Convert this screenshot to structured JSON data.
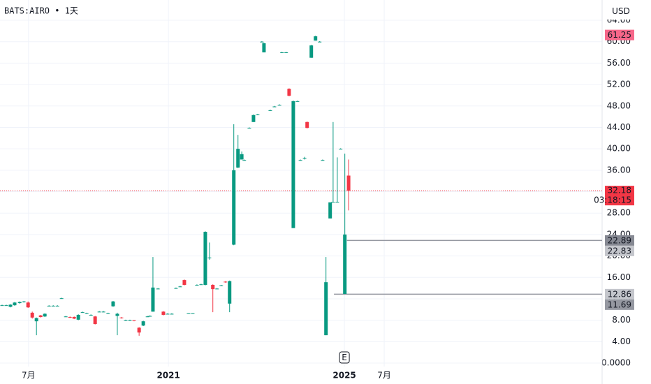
{
  "chart_data": {
    "type": "candlestick",
    "title": "BATS:AIRO • 1天",
    "currency": "USD",
    "up_color": "#089981",
    "down_color": "#f23645",
    "grid": true,
    "xlim": [
      0,
      143.7
    ],
    "ylim": [
      -0.65,
      67.78
    ],
    "yticks": [
      {
        "value": 0,
        "label": "0.0000"
      },
      {
        "value": 4,
        "label": "4.00"
      },
      {
        "value": 8,
        "label": "8.00"
      },
      {
        "value": 12,
        "label": "12.00"
      },
      {
        "value": 16,
        "label": "16.00"
      },
      {
        "value": 20,
        "label": "20.00"
      },
      {
        "value": 24,
        "label": "24.00"
      },
      {
        "value": 28,
        "label": "28.00"
      },
      {
        "value": 32,
        "label": "32.00"
      },
      {
        "value": 36,
        "label": "36.00"
      },
      {
        "value": 40,
        "label": "40.00"
      },
      {
        "value": 44,
        "label": "44.00"
      },
      {
        "value": 48,
        "label": "48.00"
      },
      {
        "value": 52,
        "label": "52.00"
      },
      {
        "value": 56,
        "label": "56.00"
      },
      {
        "value": 60,
        "label": "60.00"
      },
      {
        "value": 64,
        "label": "64.00"
      }
    ],
    "xticks": [
      {
        "value": 6.8,
        "label": "7月"
      },
      {
        "value": 40.2,
        "label": "2021"
      },
      {
        "value": 82.2,
        "label": "2025"
      },
      {
        "value": 91.7,
        "label": "7月"
      }
    ],
    "events": [
      {
        "x": 82.2,
        "label": "E"
      }
    ],
    "x": [
      0.5,
      1.5,
      2.5,
      3.5,
      4.7,
      5.7,
      6.7,
      7.7,
      8.7,
      9.7,
      10.7,
      11.7,
      12.7,
      13.7,
      14.7,
      15.7,
      16.7,
      17.7,
      18.7,
      19.7,
      20.7,
      21.7,
      22.7,
      23.7,
      24.7,
      25.8,
      27,
      28,
      29,
      30,
      31,
      32,
      33.2,
      34.2,
      35.2,
      35.8,
      36.5,
      37.7,
      39,
      40,
      41,
      42,
      43,
      44,
      45,
      46,
      47,
      48,
      49,
      50,
      50.8,
      51.8,
      52.8,
      53.8,
      54.8,
      55.8,
      56.8,
      57.7,
      58.3,
      59.5,
      60.5,
      61.5,
      62.5,
      63,
      64.5,
      65.5,
      66.7,
      67.3,
      68.3,
      69,
      70,
      71,
      71.7,
      72.7,
      73.3,
      74.3,
      75.3,
      76.3,
      77,
      77.8,
      78.8,
      79.5,
      80.5,
      81.3,
      82.3,
      83.2
    ],
    "open": [
      10.8,
      10.8,
      10.5,
      10.8,
      11.2,
      11.4,
      11.3,
      9.4,
      7.8,
      8.9,
      8.7,
      10.6,
      10.7,
      10.6,
      12.0,
      8.7,
      8.6,
      8.6,
      8.1,
      9.5,
      9.2,
      8.9,
      8.7,
      9.6,
      9.6,
      9.3,
      10.6,
      8.8,
      8.5,
      8.0,
      7.9,
      8.0,
      6.6,
      7.0,
      8.6,
      8.7,
      9.6,
      13.8,
      9.6,
      9.1,
      9.1,
      13.9,
      14.2,
      15.5,
      9.2,
      9.2,
      14.5,
      14.6,
      14.6,
      19.6,
      14.6,
      13.8,
      14.4,
      15.2,
      11.1,
      22.1,
      36.5,
      38.0,
      37.8,
      43.8,
      45.0,
      46.3,
      60.0,
      58.0,
      47.1,
      47.8,
      48.1,
      58.0,
      58.0,
      51.2,
      25.2,
      48.8,
      37.8,
      38.2,
      45.0,
      57.0,
      60.2,
      60.0,
      37.8,
      5.2,
      27.0,
      30.0,
      30.0,
      40.0,
      12.9,
      35.0
    ],
    "high": [
      10.9,
      10.9,
      11.0,
      11.4,
      11.5,
      11.6,
      11.5,
      9.6,
      8.5,
      9.0,
      9.3,
      10.8,
      10.8,
      10.8,
      12.2,
      8.8,
      8.7,
      8.7,
      9.1,
      9.6,
      9.4,
      9.1,
      8.8,
      9.7,
      9.7,
      9.4,
      11.6,
      9.4,
      8.6,
      8.1,
      8.1,
      8.0,
      6.7,
      7.9,
      8.8,
      8.9,
      19.8,
      14.0,
      9.7,
      9.3,
      9.3,
      14.1,
      14.4,
      15.6,
      9.3,
      9.3,
      14.7,
      14.8,
      24.6,
      22.5,
      14.7,
      14.0,
      14.6,
      15.3,
      15.4,
      44.6,
      42.6,
      39.5,
      38.0,
      44.0,
      46.4,
      46.5,
      60.1,
      59.8,
      47.3,
      48.0,
      48.3,
      58.1,
      58.1,
      51.3,
      49.0,
      49.0,
      38.0,
      38.5,
      45.1,
      59.4,
      61.1,
      60.1,
      38.0,
      19.8,
      30.0,
      45.0,
      38.4,
      40.1,
      39.1,
      38.0
    ],
    "low": [
      10.7,
      10.7,
      10.4,
      10.7,
      11.1,
      11.3,
      10.3,
      8.3,
      5.2,
      8.5,
      8.6,
      10.6,
      10.6,
      10.6,
      12.0,
      8.6,
      8.4,
      8.2,
      8.0,
      9.4,
      9.2,
      8.9,
      7.2,
      9.5,
      9.5,
      9.2,
      10.5,
      5.2,
      8.3,
      7.9,
      7.9,
      7.8,
      5.1,
      6.9,
      8.6,
      8.7,
      9.6,
      13.8,
      8.9,
      9.1,
      9.1,
      13.9,
      14.2,
      14.5,
      9.2,
      9.2,
      14.5,
      14.6,
      14.5,
      19.3,
      9.5,
      13.8,
      14.4,
      15.0,
      9.5,
      22.0,
      36.4,
      38.0,
      37.8,
      43.8,
      45.0,
      46.3,
      59.9,
      58.0,
      47.1,
      47.8,
      48.1,
      57.9,
      57.9,
      49.8,
      25.2,
      48.8,
      37.8,
      38.0,
      43.8,
      57.0,
      60.2,
      59.9,
      37.8,
      5.2,
      27.0,
      30.0,
      30.0,
      39.9,
      12.9,
      28.5
    ],
    "close": [
      10.8,
      10.8,
      10.9,
      11.3,
      11.4,
      11.5,
      10.4,
      8.5,
      8.4,
      8.6,
      9.2,
      10.7,
      10.7,
      10.7,
      12.1,
      8.7,
      8.5,
      8.3,
      9.0,
      9.5,
      9.3,
      9.0,
      7.3,
      9.6,
      9.6,
      9.3,
      11.5,
      9.2,
      8.4,
      8.0,
      8.0,
      7.9,
      5.7,
      7.8,
      8.7,
      8.8,
      14.1,
      13.9,
      9.0,
      9.2,
      9.2,
      14.0,
      14.3,
      14.6,
      9.3,
      9.3,
      14.6,
      14.7,
      24.5,
      19.7,
      13.8,
      13.9,
      14.5,
      15.1,
      15.3,
      36.0,
      40.0,
      39.0,
      37.9,
      43.9,
      46.3,
      46.4,
      60.0,
      59.7,
      47.2,
      47.9,
      48.2,
      58.0,
      58.0,
      49.9,
      48.9,
      48.9,
      37.9,
      38.3,
      43.9,
      59.3,
      61.0,
      60.0,
      37.9,
      15.1,
      30.0,
      30.1,
      30.1,
      40.0,
      24.0,
      32.18
    ],
    "last_price": {
      "value": 32.18,
      "countdown": "03:18:15",
      "color": "#f23645"
    },
    "price_lines": [
      {
        "value": 22.89,
        "from_x": 82.8
      },
      {
        "value": 12.86,
        "from_x": 79.7
      }
    ],
    "price_labels": [
      {
        "value": 61.25,
        "color": "#f7678a",
        "text_color": "#ffffff"
      },
      {
        "value": 22.89,
        "color": "#868993",
        "text_color": "#ffffff"
      },
      {
        "value": 22.83,
        "color": "#c4c6cc",
        "text_color": "#131722"
      },
      {
        "value": 12.86,
        "color": "#c4c6cc",
        "text_color": "#131722"
      },
      {
        "value": 11.69,
        "color": "#9598a1",
        "text_color": "#ffffff"
      }
    ]
  }
}
